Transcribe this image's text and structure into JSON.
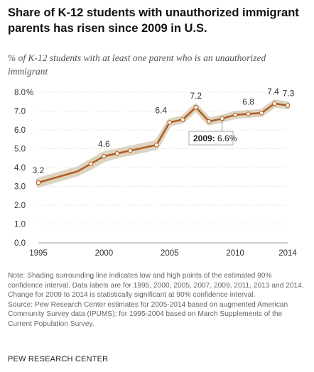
{
  "title": "Share of K-12 students with unauthorized immigrant parents has risen since 2009 in U.S.",
  "subtitle": "% of K-12 students with at least one parent who is an unauthorized immigrant",
  "chart_data": {
    "type": "line",
    "x": [
      1995,
      1996,
      1997,
      1998,
      1999,
      2000,
      2001,
      2002,
      2003,
      2004,
      2005,
      2006,
      2007,
      2008,
      2009,
      2010,
      2011,
      2012,
      2013,
      2014
    ],
    "values": [
      3.2,
      3.4,
      3.6,
      3.8,
      4.2,
      4.6,
      4.75,
      4.9,
      5.05,
      5.2,
      6.4,
      6.55,
      7.2,
      6.45,
      6.6,
      6.8,
      6.85,
      6.9,
      7.4,
      7.3
    ],
    "ci_low": [
      3.05,
      3.25,
      3.45,
      3.65,
      4.0,
      4.4,
      4.6,
      4.75,
      4.9,
      5.05,
      6.3,
      6.45,
      7.1,
      6.35,
      6.5,
      6.7,
      6.75,
      6.8,
      7.3,
      7.2
    ],
    "ci_high": [
      3.35,
      3.55,
      3.75,
      3.95,
      4.35,
      4.75,
      4.9,
      5.05,
      5.2,
      5.35,
      6.5,
      6.65,
      7.3,
      6.55,
      6.7,
      6.9,
      6.95,
      7.0,
      7.5,
      7.4
    ],
    "labeled_points": [
      {
        "x": 1995,
        "label": "3.2"
      },
      {
        "x": 2000,
        "label": "4.6"
      },
      {
        "x": 2005,
        "label": "6.4"
      },
      {
        "x": 2007,
        "label": "7.2"
      },
      {
        "x": 2011,
        "label": "6.8"
      },
      {
        "x": 2013,
        "label": "7.4"
      },
      {
        "x": 2014,
        "label": "7.3"
      }
    ],
    "callout": {
      "x": 2009,
      "year": "2009:",
      "value": "6.6%"
    },
    "ylim": [
      0,
      8
    ],
    "yticks": [
      "0.0",
      "1.0",
      "2.0",
      "3.0",
      "4.0",
      "5.0",
      "6.0",
      "7.0",
      "8.0"
    ],
    "y_unit": "%",
    "xticks": [
      1995,
      2000,
      2005,
      2010,
      2014
    ],
    "grid": true,
    "line_color": "#b35a1f",
    "band_color": "#dcd4c0",
    "marker_fill": "#ffffff"
  },
  "note": "Note: Shading surrounding line indicates low and high points of the estimated 90% confidence interval. Data labels are for 1995, 2000, 2005, 2007, 2009, 2011, 2013 and 2014. Change for 2009 to 2014 is statistically significant at 90% confidence interval.",
  "source_note": "Source: Pew Research Center estimates for 2005-2014 based on augmented American Community Survey data (IPUMS); for 1995-2004 based on March Supplements of the Current Population Survey.",
  "source": "PEW RESEARCH CENTER"
}
